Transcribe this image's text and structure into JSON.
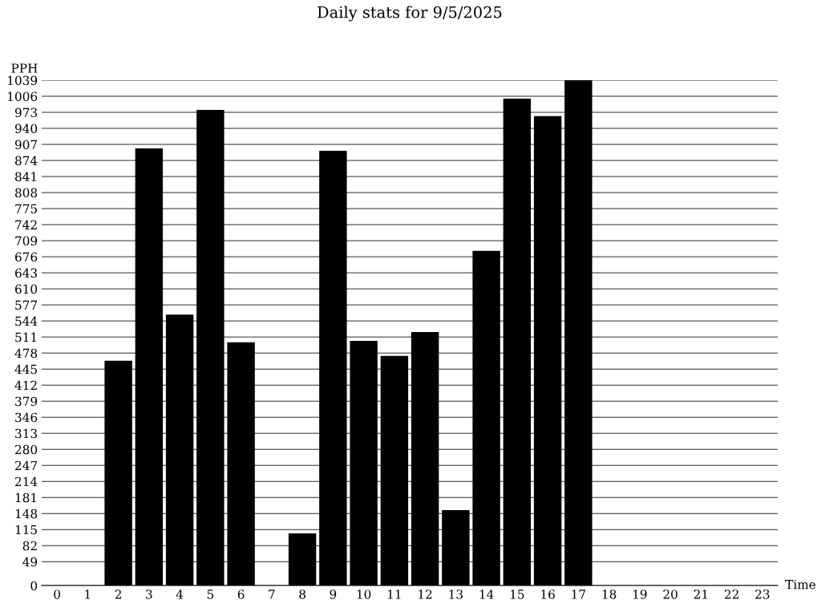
{
  "chart_data": {
    "type": "bar",
    "title": "Daily stats for 9/5/2025",
    "xlabel": "Time",
    "ylabel": "PPH",
    "categories": [
      "0",
      "1",
      "2",
      "3",
      "4",
      "5",
      "6",
      "7",
      "8",
      "9",
      "10",
      "11",
      "12",
      "13",
      "14",
      "15",
      "16",
      "17",
      "18",
      "19",
      "20",
      "21",
      "22",
      "23"
    ],
    "values": [
      0,
      0,
      462,
      899,
      557,
      978,
      500,
      0,
      107,
      894,
      503,
      472,
      521,
      155,
      688,
      1001,
      965,
      1039,
      0,
      0,
      0,
      0,
      0,
      0
    ],
    "color": "#000000",
    "ylim": [
      0,
      1039
    ],
    "yticks": [
      0,
      49,
      82,
      115,
      148,
      181,
      214,
      247,
      280,
      313,
      346,
      379,
      412,
      445,
      478,
      511,
      544,
      577,
      610,
      643,
      676,
      709,
      742,
      775,
      808,
      841,
      874,
      907,
      940,
      973,
      1006,
      1039
    ],
    "grid": "y"
  }
}
